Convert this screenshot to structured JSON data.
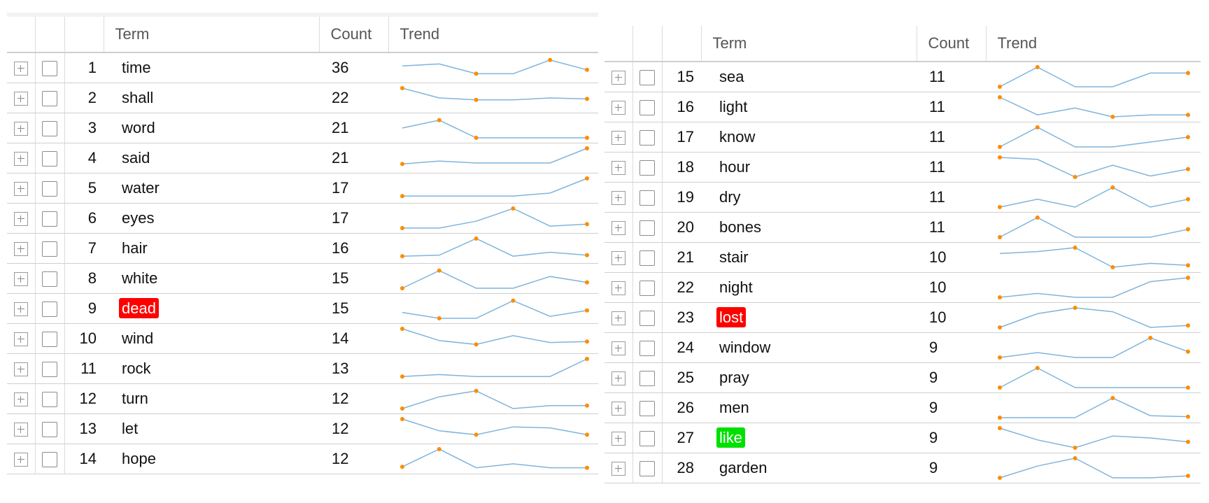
{
  "columns": {
    "term": "Term",
    "count": "Count",
    "trend": "Trend"
  },
  "colors": {
    "sparkline": "#7fb4dc",
    "sparkline_dot": "#ff8c00",
    "highlight_dead": "#ff0000",
    "highlight_lost": "#ff0000",
    "highlight_like": "#00e000"
  },
  "left_table": {
    "rows": [
      {
        "num": "1",
        "term": "time",
        "count": "36",
        "trend": [
          6,
          7,
          2,
          2,
          9,
          4
        ],
        "dots": [
          2,
          4,
          5
        ]
      },
      {
        "num": "2",
        "term": "shall",
        "count": "22",
        "trend": [
          10,
          5,
          4,
          4,
          5,
          4.5
        ],
        "dots": [
          0,
          2,
          5
        ]
      },
      {
        "num": "3",
        "term": "word",
        "count": "21",
        "trend": [
          5,
          9,
          0,
          0,
          0,
          0
        ],
        "dots": [
          1,
          2,
          5
        ]
      },
      {
        "num": "4",
        "term": "said",
        "count": "21",
        "trend": [
          2,
          3.5,
          2.5,
          2.5,
          2.5,
          10
        ],
        "dots": [
          0,
          5
        ]
      },
      {
        "num": "5",
        "term": "water",
        "count": "17",
        "trend": [
          1,
          1,
          1,
          1,
          2.5,
          10
        ],
        "dots": [
          0,
          5
        ]
      },
      {
        "num": "6",
        "term": "eyes",
        "count": "17",
        "trend": [
          0,
          0,
          3.5,
          10,
          1,
          2
        ],
        "dots": [
          0,
          3,
          5
        ]
      },
      {
        "num": "7",
        "term": "hair",
        "count": "16",
        "trend": [
          1,
          1.5,
          10,
          1,
          3,
          1.5
        ],
        "dots": [
          0,
          2,
          5
        ]
      },
      {
        "num": "8",
        "term": "white",
        "count": "15",
        "trend": [
          0,
          9,
          0,
          0,
          6,
          3
        ],
        "dots": [
          0,
          1,
          5
        ]
      },
      {
        "num": "9",
        "term": "dead",
        "count": "15",
        "highlight": "dead",
        "trend": [
          3,
          0,
          0,
          9,
          1,
          4
        ],
        "dots": [
          1,
          3,
          5
        ]
      },
      {
        "num": "10",
        "term": "wind",
        "count": "14",
        "trend": [
          10,
          4,
          2,
          6.5,
          3,
          3.5
        ],
        "dots": [
          0,
          2,
          5
        ]
      },
      {
        "num": "11",
        "term": "rock",
        "count": "13",
        "trend": [
          1,
          2,
          1,
          1,
          1,
          10
        ],
        "dots": [
          0,
          5
        ]
      },
      {
        "num": "12",
        "term": "turn",
        "count": "12",
        "trend": [
          0,
          6,
          9,
          0,
          1.5,
          1.5
        ],
        "dots": [
          0,
          2,
          5
        ]
      },
      {
        "num": "13",
        "term": "let",
        "count": "12",
        "trend": [
          10,
          4,
          2,
          6,
          5.5,
          2
        ],
        "dots": [
          0,
          2,
          5
        ]
      },
      {
        "num": "14",
        "term": "hope",
        "count": "12",
        "trend": [
          1,
          10,
          0.5,
          2.5,
          0.5,
          0.5
        ],
        "dots": [
          0,
          1,
          5
        ]
      }
    ]
  },
  "right_table": {
    "rows": [
      {
        "num": "15",
        "term": "sea",
        "count": "11",
        "trend": [
          0,
          10,
          0,
          0,
          7,
          7
        ],
        "dots": [
          0,
          1,
          5
        ]
      },
      {
        "num": "16",
        "term": "light",
        "count": "11",
        "trend": [
          10,
          1,
          4.5,
          0,
          1,
          1
        ],
        "dots": [
          0,
          3,
          5
        ]
      },
      {
        "num": "17",
        "term": "know",
        "count": "11",
        "trend": [
          0,
          10,
          0,
          0,
          2.5,
          5
        ],
        "dots": [
          0,
          1,
          5
        ]
      },
      {
        "num": "18",
        "term": "hour",
        "count": "11",
        "trend": [
          10,
          9,
          0,
          6,
          0.5,
          4
        ],
        "dots": [
          0,
          2,
          5
        ]
      },
      {
        "num": "19",
        "term": "dry",
        "count": "11",
        "trend": [
          0,
          4,
          0,
          10,
          0,
          4
        ],
        "dots": [
          0,
          3,
          5
        ]
      },
      {
        "num": "20",
        "term": "bones",
        "count": "11",
        "trend": [
          0,
          10,
          0,
          0,
          0,
          4
        ],
        "dots": [
          0,
          1,
          5
        ]
      },
      {
        "num": "21",
        "term": "stair",
        "count": "10",
        "trend": [
          7,
          8,
          10,
          0,
          2,
          1
        ],
        "dots": [
          2,
          3,
          5
        ]
      },
      {
        "num": "22",
        "term": "night",
        "count": "10",
        "trend": [
          0,
          2,
          0,
          0,
          8,
          10
        ],
        "dots": [
          0,
          5
        ]
      },
      {
        "num": "23",
        "term": "lost",
        "count": "10",
        "highlight": "lost",
        "trend": [
          0,
          7,
          10,
          8,
          0,
          1
        ],
        "dots": [
          0,
          2,
          5
        ]
      },
      {
        "num": "24",
        "term": "window",
        "count": "9",
        "trend": [
          0,
          2.5,
          0,
          0,
          10,
          3
        ],
        "dots": [
          0,
          4,
          5
        ]
      },
      {
        "num": "25",
        "term": "pray",
        "count": "9",
        "trend": [
          0,
          10,
          0,
          0,
          0,
          0
        ],
        "dots": [
          0,
          1,
          5
        ]
      },
      {
        "num": "26",
        "term": "men",
        "count": "9",
        "trend": [
          0,
          0,
          0,
          10,
          1,
          0.5
        ],
        "dots": [
          0,
          3,
          5
        ]
      },
      {
        "num": "27",
        "term": "like",
        "count": "9",
        "highlight": "like",
        "trend": [
          10,
          4,
          0,
          6,
          5,
          3
        ],
        "dots": [
          0,
          2,
          5
        ]
      },
      {
        "num": "28",
        "term": "garden",
        "count": "9",
        "trend": [
          0,
          6,
          10,
          0,
          0,
          1
        ],
        "dots": [
          0,
          2,
          5
        ]
      }
    ]
  }
}
